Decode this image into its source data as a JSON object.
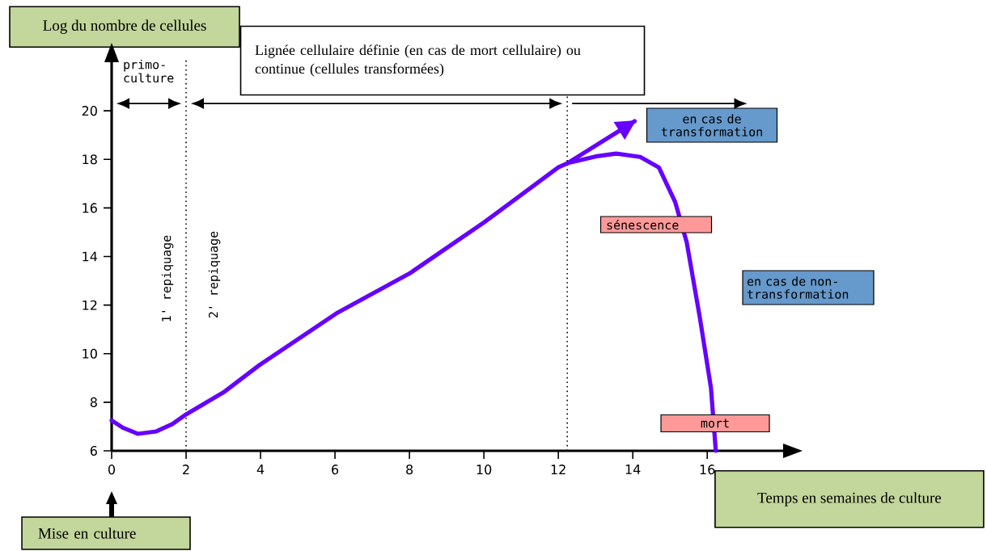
{
  "chart_data": {
    "type": "line",
    "xlabel": "Temps en semaines de culture",
    "ylabel": "Log du nombre de cellules",
    "xlim": [
      0,
      18.3
    ],
    "ylim": [
      6,
      22.4
    ],
    "xticks": [
      0,
      2,
      4,
      6,
      8,
      10,
      12,
      14,
      16
    ],
    "yticks": [
      6,
      8,
      10,
      12,
      14,
      16,
      18,
      20
    ],
    "grid": false,
    "marker": "none",
    "line_style": "solid",
    "series": [
      {
        "color": "#6600ff",
        "x": [
          0,
          0.3,
          0.7,
          1.2,
          1.63,
          2,
          3,
          3.97,
          6.08,
          8,
          10,
          12,
          12.24,
          13,
          13.55,
          14.2,
          14.7,
          15.14,
          15.45,
          15.8,
          16.1,
          16.23
        ],
        "values": [
          7.25,
          6.95,
          6.7,
          6.8,
          7.1,
          7.5,
          8.4,
          9.53,
          11.7,
          13.3,
          15.4,
          17.67,
          17.84,
          18.12,
          18.24,
          18.1,
          17.67,
          16.24,
          14.58,
          11.5,
          8.6,
          6.0
        ]
      },
      {
        "color": "#6600ff",
        "x": [
          12.24,
          14.05
        ],
        "values": [
          17.84,
          19.57
        ]
      }
    ],
    "ref_lines": [
      {
        "axis": "x",
        "value": 2,
        "color": "#000000",
        "line_style": "dotted"
      },
      {
        "axis": "x",
        "value": 12.24,
        "color": "#000000",
        "line_style": "dotted"
      }
    ],
    "annotations": [
      "primo-culture",
      "Lignée cellulaire définie (en cas de mort cellulaire) ou  continue (cellules transformées)",
      "1' repiquage",
      "2' repiquage",
      "en cas de transformation",
      "sénescence",
      "en cas de non-transformation",
      "mort",
      "Mise en culture"
    ]
  }
}
